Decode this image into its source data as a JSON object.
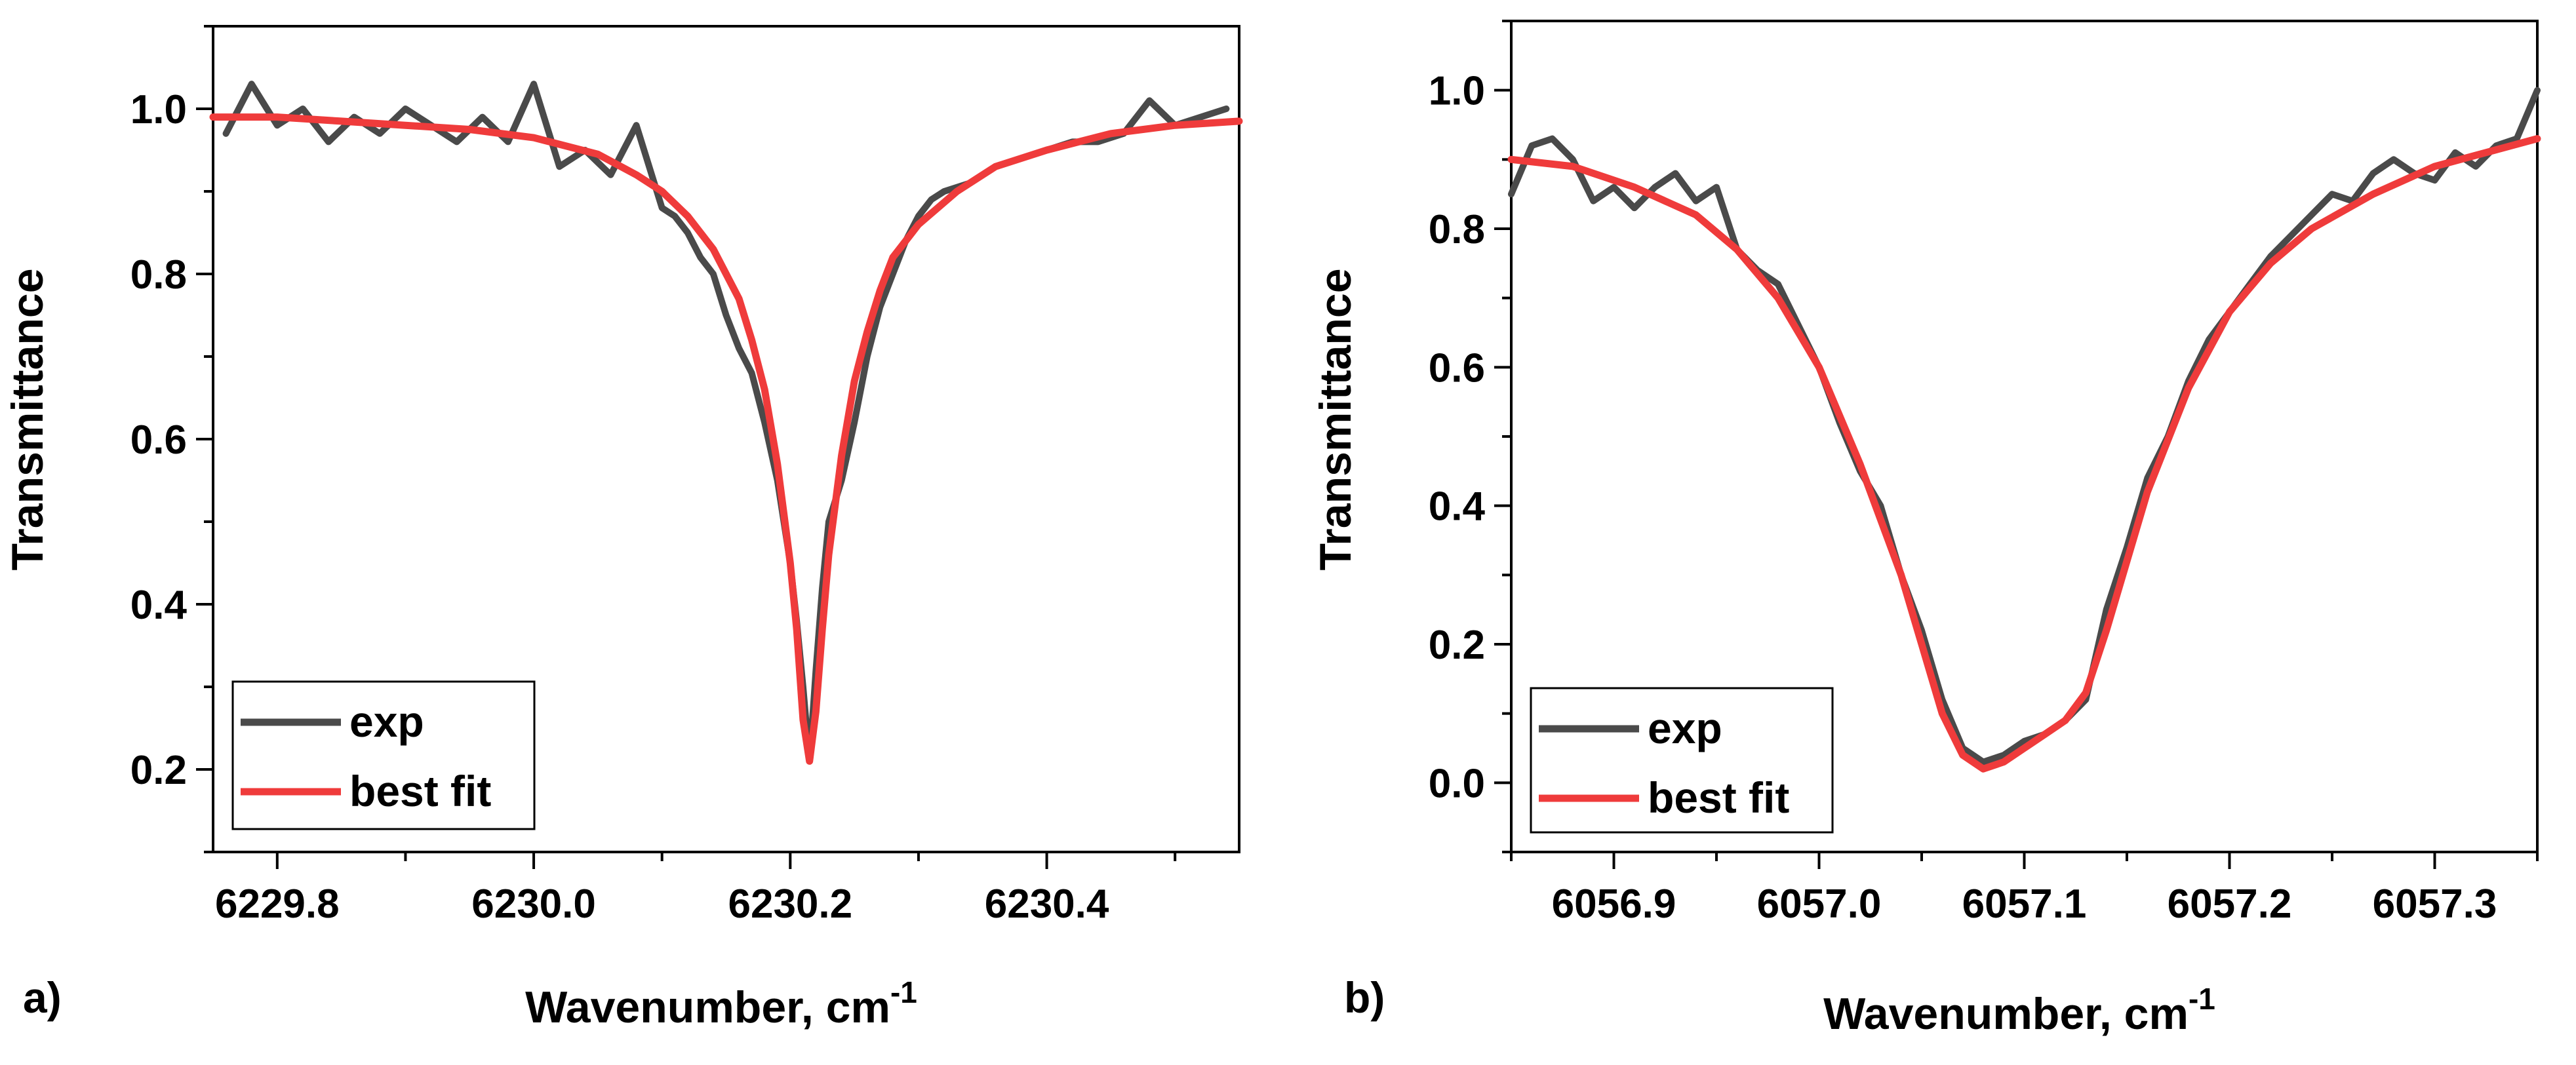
{
  "chart_data": [
    {
      "type": "line",
      "panel_label": "a)",
      "xlabel": "Wavenumber, cm",
      "xlabel_sup": "-1",
      "ylabel": "Transmittance",
      "xlim": [
        6229.75,
        6230.55
      ],
      "ylim": [
        0.1,
        1.1
      ],
      "x_ticks": [
        6229.8,
        6230.0,
        6230.2,
        6230.4
      ],
      "x_tick_labels": [
        "6229.8",
        "6230.0",
        "6230.2",
        "6230.4"
      ],
      "y_ticks": [
        0.2,
        0.4,
        0.6,
        0.8,
        1.0
      ],
      "y_tick_labels": [
        "0.2",
        "0.4",
        "0.6",
        "0.8",
        "1.0"
      ],
      "legend_position": "bottom-left",
      "series": [
        {
          "name": "exp",
          "color": "#4a4a4a",
          "x": [
            6229.76,
            6229.78,
            6229.8,
            6229.82,
            6229.84,
            6229.86,
            6229.88,
            6229.9,
            6229.92,
            6229.94,
            6229.96,
            6229.98,
            6230.0,
            6230.02,
            6230.04,
            6230.06,
            6230.08,
            6230.1,
            6230.11,
            6230.12,
            6230.13,
            6230.14,
            6230.15,
            6230.16,
            6230.17,
            6230.18,
            6230.19,
            6230.2,
            6230.205,
            6230.21,
            6230.215,
            6230.22,
            6230.225,
            6230.23,
            6230.24,
            6230.25,
            6230.26,
            6230.27,
            6230.28,
            6230.29,
            6230.3,
            6230.31,
            6230.32,
            6230.34,
            6230.36,
            6230.38,
            6230.4,
            6230.42,
            6230.44,
            6230.46,
            6230.48,
            6230.5,
            6230.52,
            6230.54
          ],
          "values": [
            0.97,
            1.03,
            0.98,
            1.0,
            0.96,
            0.99,
            0.97,
            1.0,
            0.98,
            0.96,
            0.99,
            0.96,
            1.03,
            0.93,
            0.95,
            0.92,
            0.98,
            0.88,
            0.87,
            0.85,
            0.82,
            0.8,
            0.75,
            0.71,
            0.68,
            0.62,
            0.55,
            0.45,
            0.38,
            0.3,
            0.21,
            0.32,
            0.42,
            0.5,
            0.55,
            0.62,
            0.7,
            0.76,
            0.8,
            0.84,
            0.87,
            0.89,
            0.9,
            0.91,
            0.93,
            0.94,
            0.95,
            0.96,
            0.96,
            0.97,
            1.01,
            0.98,
            0.99,
            1.0
          ]
        },
        {
          "name": "best fit",
          "color": "#ef3b3b",
          "x": [
            6229.75,
            6229.8,
            6229.85,
            6229.9,
            6229.95,
            6230.0,
            6230.05,
            6230.08,
            6230.1,
            6230.12,
            6230.14,
            6230.16,
            6230.17,
            6230.18,
            6230.19,
            6230.2,
            6230.205,
            6230.21,
            6230.215,
            6230.22,
            6230.225,
            6230.23,
            6230.24,
            6230.25,
            6230.26,
            6230.27,
            6230.28,
            6230.3,
            6230.33,
            6230.36,
            6230.4,
            6230.45,
            6230.5,
            6230.55
          ],
          "values": [
            0.99,
            0.99,
            0.985,
            0.98,
            0.975,
            0.965,
            0.945,
            0.92,
            0.9,
            0.87,
            0.83,
            0.77,
            0.72,
            0.66,
            0.57,
            0.45,
            0.37,
            0.26,
            0.21,
            0.27,
            0.37,
            0.46,
            0.58,
            0.67,
            0.73,
            0.78,
            0.82,
            0.86,
            0.9,
            0.93,
            0.95,
            0.97,
            0.98,
            0.985
          ]
        }
      ]
    },
    {
      "type": "line",
      "panel_label": "b)",
      "xlabel": "Wavenumber, cm",
      "xlabel_sup": "-1",
      "ylabel": "Transmittance",
      "xlim": [
        6056.85,
        6057.35
      ],
      "ylim": [
        -0.1,
        1.1
      ],
      "x_ticks": [
        6056.9,
        6057.0,
        6057.1,
        6057.2,
        6057.3
      ],
      "x_tick_labels": [
        "6056.9",
        "6057.0",
        "6057.1",
        "6057.2",
        "6057.3"
      ],
      "y_ticks": [
        0.0,
        0.2,
        0.4,
        0.6,
        0.8,
        1.0
      ],
      "y_tick_labels": [
        "0.0",
        "0.2",
        "0.4",
        "0.6",
        "0.8",
        "1.0"
      ],
      "legend_position": "bottom-left",
      "series": [
        {
          "name": "exp",
          "color": "#4a4a4a",
          "x": [
            6056.85,
            6056.86,
            6056.87,
            6056.88,
            6056.89,
            6056.9,
            6056.91,
            6056.92,
            6056.93,
            6056.94,
            6056.95,
            6056.96,
            6056.97,
            6056.98,
            6056.99,
            6057.0,
            6057.01,
            6057.02,
            6057.03,
            6057.04,
            6057.05,
            6057.06,
            6057.07,
            6057.08,
            6057.09,
            6057.1,
            6057.11,
            6057.12,
            6057.13,
            6057.14,
            6057.15,
            6057.16,
            6057.17,
            6057.18,
            6057.19,
            6057.2,
            6057.21,
            6057.22,
            6057.23,
            6057.24,
            6057.25,
            6057.26,
            6057.27,
            6057.28,
            6057.29,
            6057.3,
            6057.31,
            6057.32,
            6057.33,
            6057.34,
            6057.35
          ],
          "values": [
            0.85,
            0.92,
            0.93,
            0.9,
            0.84,
            0.86,
            0.83,
            0.86,
            0.88,
            0.84,
            0.86,
            0.77,
            0.74,
            0.72,
            0.66,
            0.6,
            0.52,
            0.45,
            0.4,
            0.3,
            0.22,
            0.12,
            0.05,
            0.03,
            0.04,
            0.06,
            0.07,
            0.09,
            0.12,
            0.25,
            0.34,
            0.44,
            0.5,
            0.58,
            0.64,
            0.68,
            0.72,
            0.76,
            0.79,
            0.82,
            0.85,
            0.84,
            0.88,
            0.9,
            0.88,
            0.87,
            0.91,
            0.89,
            0.92,
            0.93,
            1.0
          ]
        },
        {
          "name": "best fit",
          "color": "#ef3b3b",
          "x": [
            6056.85,
            6056.88,
            6056.91,
            6056.94,
            6056.96,
            6056.98,
            6057.0,
            6057.02,
            6057.04,
            6057.05,
            6057.06,
            6057.07,
            6057.08,
            6057.09,
            6057.1,
            6057.11,
            6057.12,
            6057.13,
            6057.14,
            6057.15,
            6057.16,
            6057.18,
            6057.2,
            6057.22,
            6057.24,
            6057.27,
            6057.3,
            6057.35
          ],
          "values": [
            0.9,
            0.89,
            0.86,
            0.82,
            0.77,
            0.7,
            0.6,
            0.46,
            0.3,
            0.2,
            0.1,
            0.04,
            0.02,
            0.03,
            0.05,
            0.07,
            0.09,
            0.13,
            0.22,
            0.32,
            0.42,
            0.57,
            0.68,
            0.75,
            0.8,
            0.85,
            0.89,
            0.93
          ]
        }
      ]
    }
  ]
}
